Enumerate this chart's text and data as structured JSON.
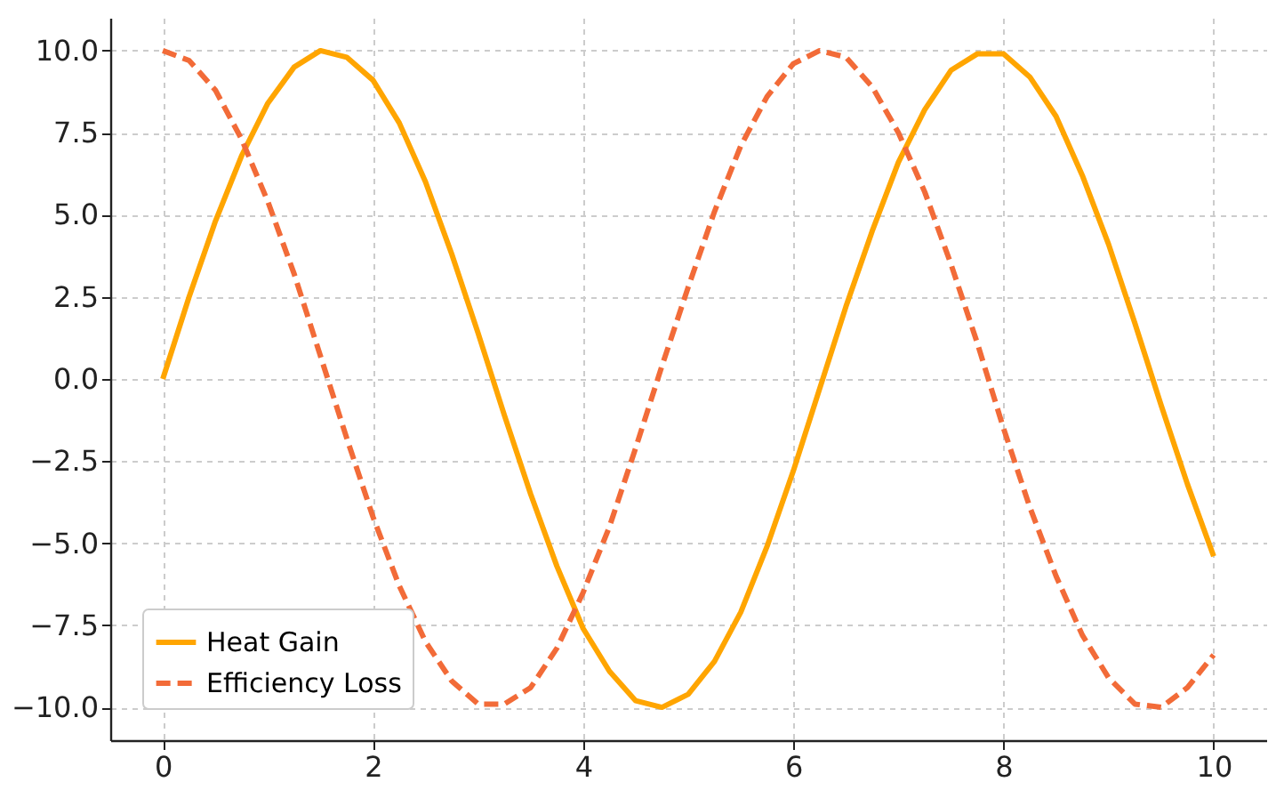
{
  "chart_data": {
    "type": "line",
    "x": [
      0,
      0.25,
      0.5,
      0.75,
      1,
      1.25,
      1.5,
      1.75,
      2,
      2.25,
      2.5,
      2.75,
      3,
      3.25,
      3.5,
      3.75,
      4,
      4.25,
      4.5,
      4.75,
      5,
      5.25,
      5.5,
      5.75,
      6,
      6.25,
      6.5,
      6.75,
      7,
      7.25,
      7.5,
      7.75,
      8,
      8.25,
      8.5,
      8.75,
      9,
      9.25,
      9.5,
      9.75,
      10
    ],
    "series": [
      {
        "name": "Heat Gain",
        "color": "#ffa500",
        "line_style": "solid",
        "values": [
          0.0,
          2.5,
          4.8,
          6.8,
          8.4,
          9.5,
          10.0,
          9.8,
          9.1,
          7.8,
          6.0,
          3.8,
          1.4,
          -1.1,
          -3.5,
          -5.7,
          -7.6,
          -8.9,
          -9.8,
          -10.0,
          -9.6,
          -8.6,
          -7.1,
          -5.1,
          -2.8,
          -0.3,
          2.2,
          4.5,
          6.6,
          8.2,
          9.4,
          9.9,
          9.9,
          9.2,
          8.0,
          6.2,
          4.1,
          1.7,
          -0.8,
          -3.2,
          -5.4
        ]
      },
      {
        "name": "Efficiency Loss",
        "color": "#f26b38",
        "line_style": "dashed",
        "values": [
          10.0,
          9.7,
          8.8,
          7.3,
          5.4,
          3.2,
          0.7,
          -1.8,
          -4.2,
          -6.3,
          -8.0,
          -9.2,
          -9.9,
          -9.9,
          -9.4,
          -8.2,
          -6.5,
          -4.5,
          -2.1,
          0.4,
          2.8,
          5.1,
          7.1,
          8.6,
          9.6,
          10.0,
          9.8,
          8.9,
          7.5,
          5.7,
          3.5,
          1.1,
          -1.5,
          -3.9,
          -6.0,
          -7.8,
          -9.1,
          -9.9,
          -10.0,
          -9.4,
          -8.4
        ]
      }
    ],
    "xlim": [
      -0.5,
      10.5
    ],
    "xticks": [
      0,
      2,
      4,
      6,
      8,
      10
    ],
    "ylim": [
      -11,
      11
    ],
    "yticks": [
      {
        "value": -10,
        "label": "−10.0"
      },
      {
        "value": -7.5,
        "label": "−7.5"
      },
      {
        "value": -5,
        "label": "−5.0"
      },
      {
        "value": -2.5,
        "label": "−2.5"
      },
      {
        "value": 0,
        "label": "0.0"
      },
      {
        "value": 2.5,
        "label": "2.5"
      },
      {
        "value": 5,
        "label": "5.0"
      },
      {
        "value": 7.5,
        "label": "7.5"
      },
      {
        "value": 10,
        "label": "10.0"
      }
    ],
    "grid": true,
    "legend": "bottom left"
  }
}
